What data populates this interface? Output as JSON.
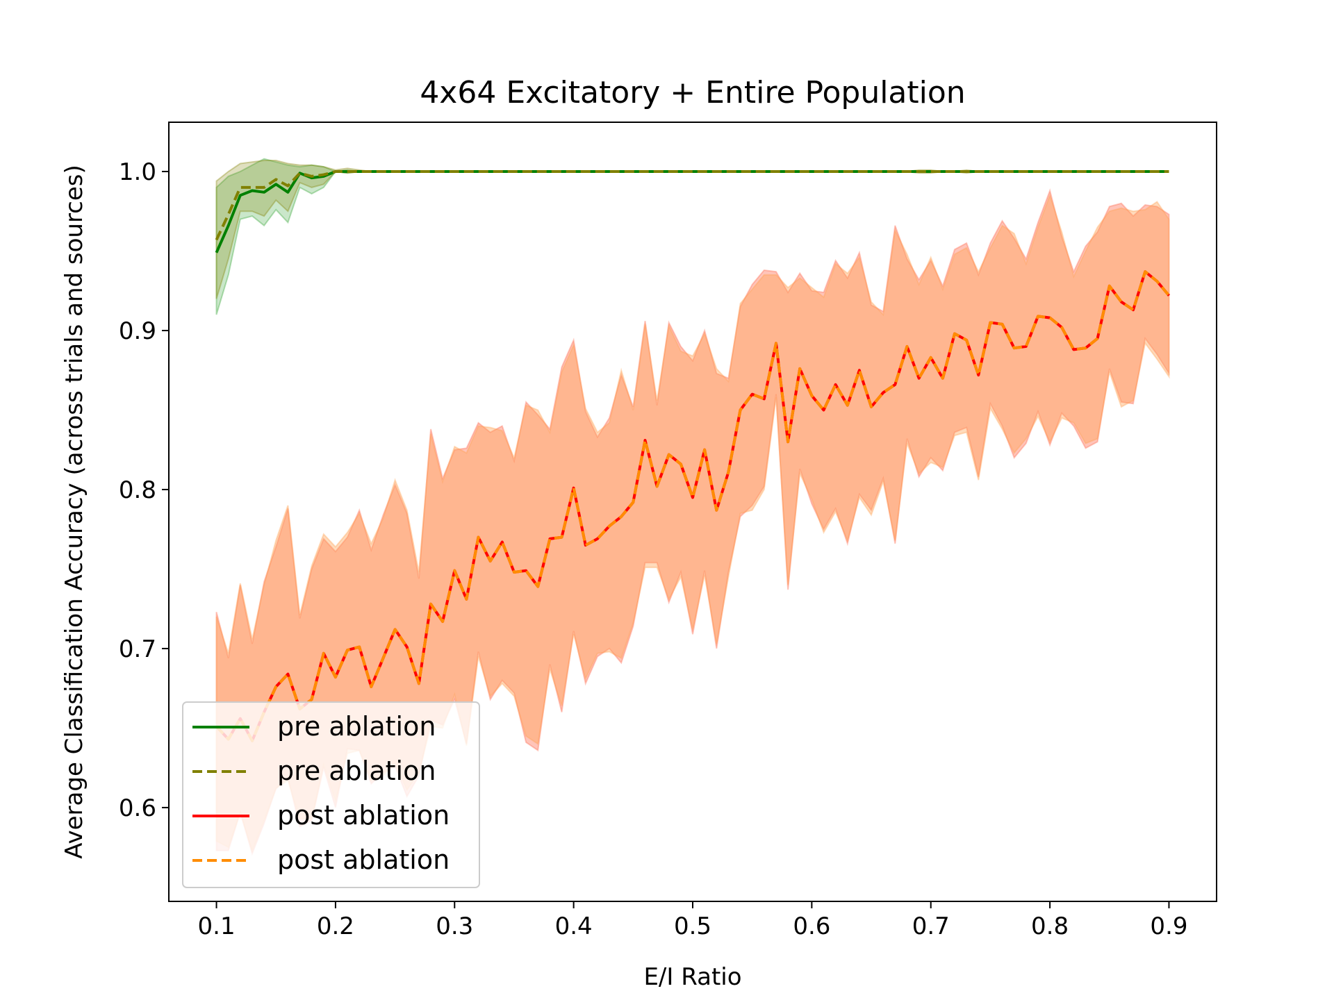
{
  "chart_data": {
    "type": "line",
    "title": "4x64 Excitatory + Entire Population",
    "xlabel": "E/I Ratio",
    "ylabel": "Average Classification Accuracy (across trials and sources)",
    "xlim": [
      0.06,
      0.94
    ],
    "ylim": [
      0.541,
      1.031
    ],
    "xticks": [
      "0.1",
      "0.2",
      "0.3",
      "0.4",
      "0.5",
      "0.6",
      "0.7",
      "0.8",
      "0.9"
    ],
    "yticks": [
      "0.6",
      "0.7",
      "0.8",
      "0.9",
      "1.0"
    ],
    "grid": false,
    "legend_position": "lower-left",
    "x": [
      0.1,
      0.11,
      0.12,
      0.13,
      0.14,
      0.15,
      0.16,
      0.17,
      0.18,
      0.19,
      0.2,
      0.21,
      0.22,
      0.23,
      0.24,
      0.25,
      0.26,
      0.27,
      0.28,
      0.29,
      0.3,
      0.31,
      0.32,
      0.33,
      0.34,
      0.35,
      0.36,
      0.37,
      0.38,
      0.39,
      0.4,
      0.41,
      0.42,
      0.43,
      0.44,
      0.45,
      0.46,
      0.47,
      0.48,
      0.49,
      0.5,
      0.51,
      0.52,
      0.53,
      0.54,
      0.55,
      0.56,
      0.57,
      0.58,
      0.59,
      0.6,
      0.61,
      0.62,
      0.63,
      0.64,
      0.65,
      0.66,
      0.67,
      0.68,
      0.69,
      0.7,
      0.71,
      0.72,
      0.73,
      0.74,
      0.75,
      0.76,
      0.77,
      0.78,
      0.79,
      0.8,
      0.81,
      0.82,
      0.83,
      0.84,
      0.85,
      0.86,
      0.87,
      0.88,
      0.89,
      0.9
    ],
    "series": [
      {
        "name": "pre ablation",
        "color": "#008000",
        "style": "solid",
        "values": [
          0.949,
          0.966,
          0.985,
          0.988,
          0.987,
          0.992,
          0.987,
          0.999,
          0.996,
          0.997,
          1.0,
          1.0,
          1.0,
          1.0,
          1.0,
          1.0,
          1.0,
          1.0,
          1.0,
          1.0,
          1.0,
          1.0,
          1.0,
          1.0,
          1.0,
          1.0,
          1.0,
          1.0,
          1.0,
          1.0,
          1.0,
          1.0,
          1.0,
          1.0,
          1.0,
          1.0,
          1.0,
          1.0,
          1.0,
          1.0,
          1.0,
          1.0,
          1.0,
          1.0,
          1.0,
          1.0,
          1.0,
          1.0,
          1.0,
          1.0,
          1.0,
          1.0,
          1.0,
          1.0,
          1.0,
          1.0,
          1.0,
          1.0,
          1.0,
          1.0,
          1.0,
          1.0,
          1.0,
          1.0,
          1.0,
          1.0,
          1.0,
          1.0,
          1.0,
          1.0,
          1.0,
          1.0,
          1.0,
          1.0,
          1.0,
          1.0,
          1.0,
          1.0,
          1.0,
          1.0,
          1.0
        ],
        "lower": [
          0.91,
          0.935,
          0.97,
          0.972,
          0.966,
          0.976,
          0.968,
          0.99,
          0.986,
          0.99,
          1.0,
          0.999,
          1.0,
          1.0,
          1.0,
          1.0,
          1.0,
          1.0,
          1.0,
          1.0,
          1.0,
          1.0,
          1.0,
          1.0,
          1.0,
          1.0,
          1.0,
          1.0,
          1.0,
          1.0,
          1.0,
          1.0,
          1.0,
          1.0,
          1.0,
          1.0,
          1.0,
          1.0,
          1.0,
          1.0,
          1.0,
          1.0,
          1.0,
          1.0,
          1.0,
          1.0,
          1.0,
          1.0,
          1.0,
          1.0,
          1.0,
          1.0,
          1.0,
          1.0,
          1.0,
          1.0,
          1.0,
          1.0,
          1.0,
          1.0,
          1.0,
          1.0,
          1.0,
          1.0,
          1.0,
          1.0,
          1.0,
          1.0,
          1.0,
          1.0,
          1.0,
          1.0,
          1.0,
          1.0,
          1.0,
          1.0,
          1.0,
          1.0,
          1.0,
          1.0,
          1.0
        ],
        "upper": [
          0.99,
          0.997,
          1.0,
          1.004,
          1.008,
          1.006,
          1.004,
          1.003,
          1.004,
          1.003,
          1.0,
          1.001,
          1.0,
          1.0,
          1.0,
          1.0,
          1.0,
          1.0,
          1.0,
          1.0,
          1.0,
          1.0,
          1.0,
          1.0,
          1.0,
          1.0,
          1.0,
          1.0,
          1.0,
          1.0,
          1.0,
          1.0,
          1.0,
          1.0,
          1.0,
          1.0,
          1.0,
          1.0,
          1.0,
          1.0,
          1.0,
          1.0,
          1.0,
          1.0,
          1.0,
          1.0,
          1.0,
          1.0,
          1.0,
          1.0,
          1.0,
          1.0,
          1.0,
          1.0,
          1.0,
          1.0,
          1.0,
          1.0,
          1.0,
          1.0,
          1.0,
          1.0,
          1.0,
          1.0,
          1.0,
          1.0,
          1.0,
          1.0,
          1.0,
          1.0,
          1.0,
          1.0,
          1.0,
          1.0,
          1.0,
          1.0,
          1.0,
          1.0,
          1.0,
          1.0,
          1.0
        ]
      },
      {
        "name": "pre ablation",
        "color": "#808000",
        "style": "dashed",
        "values": [
          0.957,
          0.973,
          0.99,
          0.99,
          0.99,
          0.995,
          0.991,
          0.999,
          0.997,
          0.998,
          1.0,
          1.0,
          1.0,
          1.0,
          1.0,
          1.0,
          1.0,
          1.0,
          1.0,
          1.0,
          1.0,
          1.0,
          1.0,
          1.0,
          1.0,
          1.0,
          1.0,
          1.0,
          1.0,
          1.0,
          1.0,
          1.0,
          1.0,
          1.0,
          1.0,
          1.0,
          1.0,
          1.0,
          1.0,
          1.0,
          1.0,
          1.0,
          1.0,
          1.0,
          1.0,
          1.0,
          1.0,
          1.0,
          1.0,
          1.0,
          1.0,
          1.0,
          1.0,
          1.0,
          1.0,
          1.0,
          1.0,
          1.0,
          1.0,
          1.0,
          1.0,
          1.0,
          1.0,
          1.0,
          1.0,
          1.0,
          1.0,
          1.0,
          1.0,
          1.0,
          1.0,
          1.0,
          1.0,
          1.0,
          1.0,
          1.0,
          1.0,
          1.0,
          1.0,
          1.0,
          1.0
        ],
        "lower": [
          0.92,
          0.945,
          0.975,
          0.975,
          0.972,
          0.982,
          0.975,
          0.993,
          0.99,
          0.992,
          1.0,
          0.999,
          1.0,
          1.0,
          1.0,
          1.0,
          1.0,
          1.0,
          1.0,
          1.0,
          1.0,
          1.0,
          1.0,
          1.0,
          1.0,
          1.0,
          1.0,
          1.0,
          1.0,
          1.0,
          1.0,
          1.0,
          1.0,
          1.0,
          1.0,
          1.0,
          1.0,
          1.0,
          1.0,
          1.0,
          1.0,
          1.0,
          1.0,
          1.0,
          1.0,
          1.0,
          1.0,
          1.0,
          1.0,
          1.0,
          1.0,
          1.0,
          1.0,
          1.0,
          1.0,
          1.0,
          1.0,
          1.0,
          1.0,
          0.999,
          0.999,
          1.0,
          1.0,
          0.999,
          1.0,
          1.0,
          1.0,
          1.0,
          1.0,
          1.0,
          1.0,
          1.0,
          1.0,
          1.0,
          1.0,
          1.0,
          1.0,
          1.0,
          1.0,
          1.0,
          1.0
        ],
        "upper": [
          0.994,
          1.0,
          1.005,
          1.006,
          1.007,
          1.007,
          1.005,
          1.004,
          1.004,
          1.003,
          1.001,
          1.002,
          1.001,
          1.0,
          1.0,
          1.0,
          1.0,
          1.0,
          1.0,
          1.0,
          1.0,
          1.0,
          1.0,
          1.0,
          1.0,
          1.0,
          1.0,
          1.0,
          1.0,
          1.0,
          1.0,
          1.0,
          1.0,
          1.0,
          1.0,
          1.0,
          1.0,
          1.0,
          1.0,
          1.0,
          1.0,
          1.0,
          1.0,
          1.0,
          1.0,
          1.0,
          1.0,
          1.0,
          1.0,
          1.0,
          1.0,
          1.0,
          1.0,
          1.0,
          1.0,
          1.0,
          1.0,
          1.0,
          1.0,
          1.001,
          1.001,
          1.0,
          1.0,
          1.001,
          1.0,
          1.0,
          1.0,
          1.0,
          1.0,
          1.0,
          1.0,
          1.0,
          1.0,
          1.0,
          1.0,
          1.0,
          1.0,
          1.0,
          1.0,
          1.0,
          1.0
        ]
      },
      {
        "name": "post ablation",
        "color": "#ff0000",
        "style": "solid",
        "values": [
          0.651,
          0.643,
          0.656,
          0.642,
          0.66,
          0.676,
          0.684,
          0.662,
          0.668,
          0.697,
          0.682,
          0.699,
          0.701,
          0.676,
          0.694,
          0.712,
          0.701,
          0.678,
          0.728,
          0.717,
          0.749,
          0.731,
          0.77,
          0.755,
          0.767,
          0.748,
          0.749,
          0.739,
          0.769,
          0.77,
          0.801,
          0.765,
          0.769,
          0.777,
          0.783,
          0.792,
          0.831,
          0.802,
          0.822,
          0.816,
          0.795,
          0.825,
          0.787,
          0.811,
          0.85,
          0.86,
          0.857,
          0.892,
          0.83,
          0.876,
          0.859,
          0.85,
          0.866,
          0.853,
          0.875,
          0.852,
          0.861,
          0.866,
          0.89,
          0.87,
          0.883,
          0.87,
          0.898,
          0.894,
          0.872,
          0.905,
          0.904,
          0.889,
          0.89,
          0.909,
          0.908,
          0.902,
          0.888,
          0.889,
          0.895,
          0.928,
          0.918,
          0.913,
          0.937,
          0.931,
          0.922
        ],
        "lower": [
          0.573,
          0.573,
          0.597,
          0.571,
          0.59,
          0.612,
          0.619,
          0.588,
          0.592,
          0.625,
          0.6,
          0.637,
          0.636,
          0.615,
          0.622,
          0.626,
          0.607,
          0.62,
          0.655,
          0.652,
          0.668,
          0.64,
          0.698,
          0.668,
          0.68,
          0.672,
          0.641,
          0.636,
          0.69,
          0.66,
          0.711,
          0.678,
          0.695,
          0.7,
          0.691,
          0.714,
          0.754,
          0.754,
          0.729,
          0.748,
          0.709,
          0.749,
          0.7,
          0.748,
          0.783,
          0.79,
          0.802,
          0.86,
          0.737,
          0.813,
          0.791,
          0.775,
          0.788,
          0.766,
          0.797,
          0.787,
          0.807,
          0.766,
          0.832,
          0.808,
          0.82,
          0.812,
          0.836,
          0.839,
          0.808,
          0.854,
          0.84,
          0.82,
          0.829,
          0.849,
          0.828,
          0.848,
          0.84,
          0.826,
          0.83,
          0.876,
          0.855,
          0.854,
          0.895,
          0.885,
          0.873
        ],
        "upper": [
          0.723,
          0.694,
          0.74,
          0.703,
          0.742,
          0.764,
          0.788,
          0.719,
          0.75,
          0.769,
          0.761,
          0.77,
          0.787,
          0.762,
          0.784,
          0.803,
          0.785,
          0.744,
          0.838,
          0.807,
          0.825,
          0.826,
          0.842,
          0.836,
          0.84,
          0.818,
          0.855,
          0.847,
          0.838,
          0.877,
          0.894,
          0.849,
          0.833,
          0.845,
          0.872,
          0.852,
          0.906,
          0.853,
          0.905,
          0.89,
          0.881,
          0.9,
          0.873,
          0.87,
          0.915,
          0.929,
          0.938,
          0.937,
          0.924,
          0.936,
          0.925,
          0.924,
          0.944,
          0.933,
          0.949,
          0.916,
          0.912,
          0.966,
          0.945,
          0.932,
          0.944,
          0.928,
          0.951,
          0.955,
          0.935,
          0.955,
          0.969,
          0.958,
          0.945,
          0.968,
          0.988,
          0.959,
          0.937,
          0.953,
          0.962,
          0.978,
          0.98,
          0.972,
          0.979,
          0.978,
          0.973
        ]
      },
      {
        "name": "post ablation",
        "color": "#ff8c00",
        "style": "dashed",
        "values": [
          0.651,
          0.643,
          0.656,
          0.642,
          0.66,
          0.676,
          0.684,
          0.662,
          0.668,
          0.697,
          0.682,
          0.699,
          0.701,
          0.676,
          0.694,
          0.712,
          0.701,
          0.678,
          0.728,
          0.717,
          0.749,
          0.731,
          0.77,
          0.755,
          0.767,
          0.748,
          0.749,
          0.739,
          0.769,
          0.77,
          0.801,
          0.765,
          0.769,
          0.777,
          0.783,
          0.792,
          0.831,
          0.802,
          0.822,
          0.816,
          0.795,
          0.825,
          0.787,
          0.811,
          0.85,
          0.86,
          0.857,
          0.892,
          0.83,
          0.876,
          0.859,
          0.85,
          0.866,
          0.853,
          0.875,
          0.852,
          0.861,
          0.866,
          0.89,
          0.87,
          0.883,
          0.87,
          0.898,
          0.894,
          0.872,
          0.905,
          0.904,
          0.889,
          0.89,
          0.909,
          0.908,
          0.902,
          0.888,
          0.889,
          0.895,
          0.928,
          0.918,
          0.913,
          0.937,
          0.931,
          0.922
        ],
        "lower": [
          0.579,
          0.575,
          0.597,
          0.573,
          0.592,
          0.612,
          0.617,
          0.593,
          0.593,
          0.627,
          0.604,
          0.634,
          0.636,
          0.617,
          0.62,
          0.628,
          0.611,
          0.622,
          0.651,
          0.65,
          0.671,
          0.639,
          0.695,
          0.67,
          0.678,
          0.67,
          0.645,
          0.64,
          0.687,
          0.664,
          0.709,
          0.681,
          0.697,
          0.698,
          0.694,
          0.716,
          0.751,
          0.751,
          0.731,
          0.745,
          0.712,
          0.746,
          0.703,
          0.745,
          0.785,
          0.787,
          0.8,
          0.858,
          0.74,
          0.81,
          0.794,
          0.773,
          0.786,
          0.768,
          0.795,
          0.784,
          0.805,
          0.768,
          0.829,
          0.81,
          0.817,
          0.814,
          0.834,
          0.836,
          0.806,
          0.851,
          0.838,
          0.823,
          0.832,
          0.846,
          0.83,
          0.845,
          0.842,
          0.829,
          0.832,
          0.874,
          0.852,
          0.856,
          0.892,
          0.882,
          0.871
        ],
        "upper": [
          0.72,
          0.697,
          0.741,
          0.706,
          0.74,
          0.768,
          0.79,
          0.721,
          0.752,
          0.772,
          0.764,
          0.773,
          0.785,
          0.766,
          0.782,
          0.806,
          0.787,
          0.748,
          0.835,
          0.805,
          0.827,
          0.823,
          0.84,
          0.839,
          0.837,
          0.82,
          0.853,
          0.85,
          0.836,
          0.874,
          0.891,
          0.851,
          0.836,
          0.842,
          0.875,
          0.85,
          0.904,
          0.856,
          0.903,
          0.887,
          0.884,
          0.898,
          0.876,
          0.868,
          0.917,
          0.926,
          0.935,
          0.935,
          0.927,
          0.933,
          0.927,
          0.921,
          0.942,
          0.936,
          0.946,
          0.918,
          0.91,
          0.963,
          0.948,
          0.929,
          0.946,
          0.926,
          0.948,
          0.952,
          0.937,
          0.952,
          0.966,
          0.961,
          0.942,
          0.965,
          0.985,
          0.962,
          0.934,
          0.95,
          0.965,
          0.975,
          0.977,
          0.975,
          0.976,
          0.981,
          0.97
        ]
      }
    ]
  }
}
